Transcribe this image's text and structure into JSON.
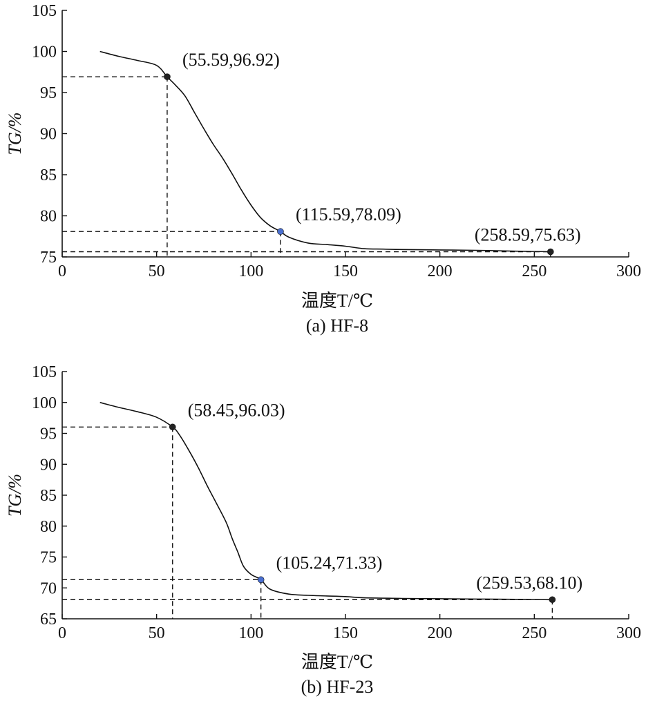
{
  "chart_data": [
    {
      "type": "line",
      "caption": "(a) HF-8",
      "xlabel": "温度T/℃",
      "ylabel": "TG/%",
      "xlim": [
        0,
        300
      ],
      "ylim": [
        75,
        105
      ],
      "xticks": [
        0,
        50,
        100,
        150,
        200,
        250,
        300
      ],
      "yticks": [
        75,
        80,
        85,
        90,
        95,
        100,
        105
      ],
      "series": [
        {
          "x": [
            20,
            30,
            40,
            50,
            55.59,
            60,
            65,
            70,
            75,
            80,
            85,
            90,
            95,
            100,
            105,
            110,
            115.59,
            120,
            130,
            140,
            150,
            160,
            170,
            180,
            200,
            220,
            240,
            258.59
          ],
          "values": [
            100.0,
            99.4,
            98.9,
            98.3,
            96.92,
            95.9,
            94.6,
            92.6,
            90.6,
            88.7,
            87.0,
            85.1,
            83.1,
            81.3,
            79.8,
            78.8,
            78.09,
            77.4,
            76.7,
            76.5,
            76.3,
            76.0,
            75.95,
            75.9,
            75.85,
            75.8,
            75.7,
            75.63
          ]
        }
      ],
      "points": [
        {
          "x": 55.59,
          "y": 96.92,
          "label": "(55.59,96.92)",
          "color": "#222222"
        },
        {
          "x": 115.59,
          "y": 78.09,
          "label": "(115.59,78.09)",
          "color": "#4a6fd0"
        },
        {
          "x": 258.59,
          "y": 75.63,
          "label": "(258.59,75.63)",
          "color": "#222222"
        }
      ]
    },
    {
      "type": "line",
      "caption": "(b) HF-23",
      "xlabel": "温度T/℃",
      "ylabel": "TG/%",
      "xlim": [
        0,
        300
      ],
      "ylim": [
        65,
        105
      ],
      "xticks": [
        0,
        50,
        100,
        150,
        200,
        250,
        300
      ],
      "yticks": [
        65,
        70,
        75,
        80,
        85,
        90,
        95,
        100,
        105
      ],
      "series": [
        {
          "x": [
            20,
            30,
            40,
            50,
            58.45,
            62,
            67,
            72,
            77,
            82,
            87,
            90,
            93,
            96,
            100,
            105.24,
            110,
            120,
            130,
            140,
            150,
            160,
            180,
            200,
            220,
            240,
            259.53
          ],
          "values": [
            100.0,
            99.2,
            98.5,
            97.6,
            96.03,
            94.8,
            92.3,
            89.5,
            86.4,
            83.5,
            80.5,
            78.0,
            75.8,
            73.5,
            72.2,
            71.33,
            69.8,
            69.0,
            68.8,
            68.7,
            68.6,
            68.4,
            68.3,
            68.25,
            68.2,
            68.15,
            68.1
          ]
        }
      ],
      "points": [
        {
          "x": 58.45,
          "y": 96.03,
          "label": "(58.45,96.03)",
          "color": "#222222"
        },
        {
          "x": 105.24,
          "y": 71.33,
          "label": "(105.24,71.33)",
          "color": "#4a6fd0"
        },
        {
          "x": 259.53,
          "y": 68.1,
          "label": "(259.53,68.10)",
          "color": "#222222"
        }
      ]
    }
  ]
}
